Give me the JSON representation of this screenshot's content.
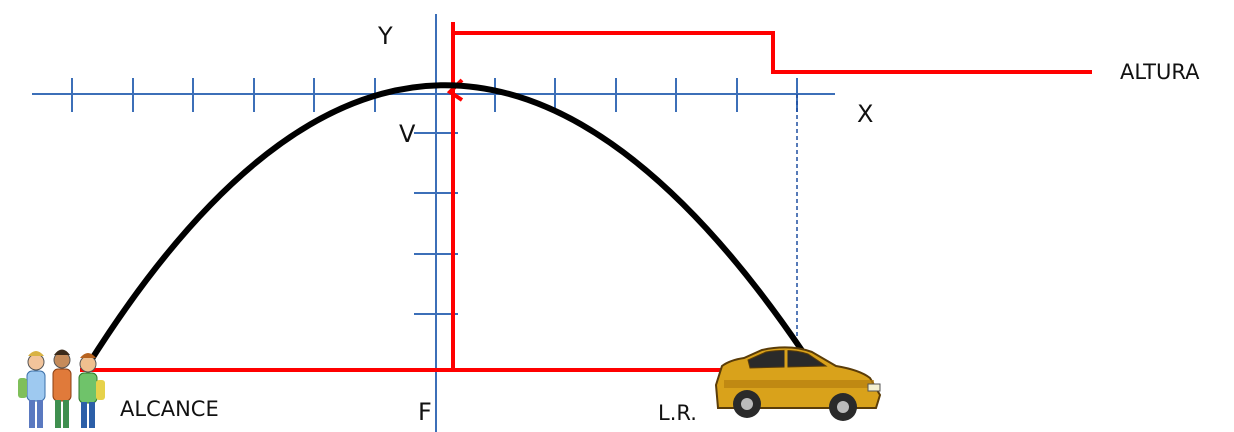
{
  "labels": {
    "y_axis": "Y",
    "x_axis": "X",
    "vertex": "V",
    "focus": "F",
    "altura": "ALTURA",
    "alcance": "ALCANCE",
    "lado_recto": "L.R."
  },
  "colors": {
    "axis": "#3c6fb8",
    "parabola": "#000000",
    "measure": "#ff0000",
    "guide": "#1f4fa0",
    "text": "#111111",
    "car_body": "#d9a21b",
    "car_dark": "#2a2a2a"
  },
  "icons": {
    "people": "people-group-icon",
    "car": "car-icon"
  }
}
